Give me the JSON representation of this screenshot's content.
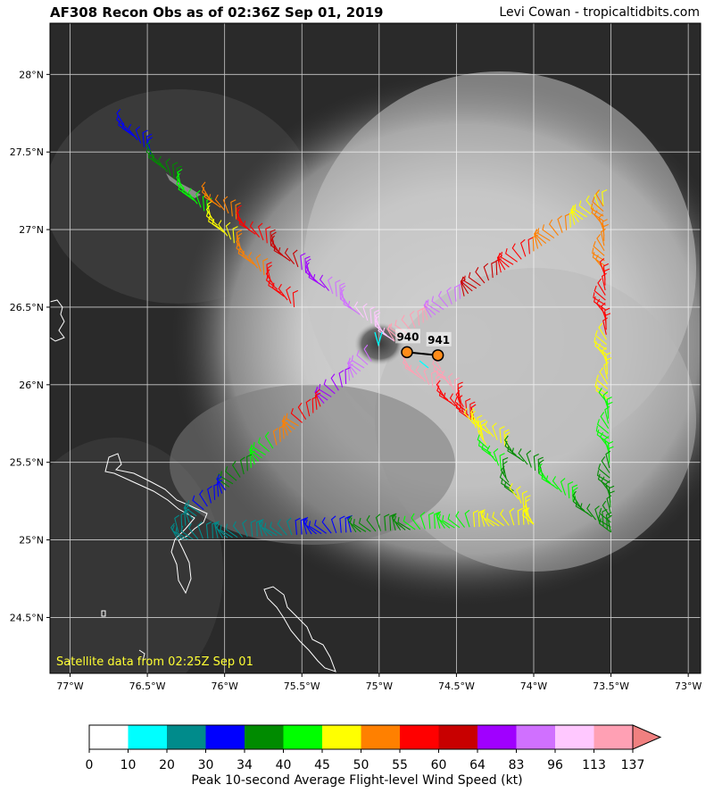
{
  "header": {
    "title": "AF308 Recon Obs as of 02:36Z Sep 01, 2019",
    "credit": "Levi Cowan - tropicaltidbits.com"
  },
  "map": {
    "lon_range": [
      -77.13,
      -72.92
    ],
    "lat_range": [
      24.14,
      28.33
    ],
    "lat_ticks": [
      "28°N",
      "27.5°N",
      "27°N",
      "26.5°N",
      "26°N",
      "25.5°N",
      "25°N",
      "24.5°N"
    ],
    "lat_tick_values": [
      28,
      27.5,
      27,
      26.5,
      26,
      25.5,
      25,
      24.5
    ],
    "lon_ticks": [
      "77°W",
      "76.5°W",
      "76°W",
      "75.5°W",
      "75°W",
      "74.5°W",
      "74°W",
      "73.5°W",
      "73°W"
    ],
    "lon_tick_values": [
      -77,
      -76.5,
      -76,
      -75.5,
      -75,
      -74.5,
      -74,
      -73.5,
      -73
    ],
    "satellite_note": "Satellite data from 02:25Z Sep 01",
    "pressure_obs": [
      {
        "label": "940",
        "lon": -74.82,
        "lat": 26.21
      },
      {
        "label": "941",
        "lon": -74.62,
        "lat": 26.19
      }
    ],
    "flight_legs": [
      {
        "from": [
          -76.65,
          27.67
        ],
        "to": [
          -75.55,
          26.5
        ],
        "colors": [
          "#0000ff",
          "#008b00",
          "#00ff00",
          "#ffff00",
          "#ff8000",
          "#ff0000"
        ]
      },
      {
        "from": [
          -76.1,
          27.2
        ],
        "to": [
          -74.9,
          26.28
        ],
        "colors": [
          "#ff8000",
          "#ff0000",
          "#c80000",
          "#a000ff",
          "#d070ff",
          "#ffc8ff"
        ]
      },
      {
        "from": [
          -74.9,
          26.28
        ],
        "to": [
          -73.55,
          27.15
        ],
        "colors": [
          "#ffa0b4",
          "#d070ff",
          "#c80000",
          "#ff0000",
          "#ff8000",
          "#ffff00"
        ]
      },
      {
        "from": [
          -73.55,
          27.15
        ],
        "to": [
          -73.5,
          25.05
        ],
        "colors": [
          "#ff8000",
          "#ff0000",
          "#ffff00",
          "#00ff00",
          "#008b00"
        ]
      },
      {
        "from": [
          -74.8,
          26.1
        ],
        "to": [
          -73.5,
          25.05
        ],
        "colors": [
          "#ffa0b4",
          "#ff0000",
          "#ffff00",
          "#008b00",
          "#00ff00",
          "#008b00"
        ]
      },
      {
        "from": [
          -74.6,
          26.1
        ],
        "to": [
          -74.0,
          25.1
        ],
        "colors": [
          "#ffa0b4",
          "#ff0000",
          "#ffff00",
          "#00ff00",
          "#008b00",
          "#ffff00"
        ]
      },
      {
        "from": [
          -75.05,
          26.15
        ],
        "to": [
          -76.3,
          25.05
        ],
        "colors": [
          "#d070ff",
          "#a000ff",
          "#ff0000",
          "#ff8000",
          "#00ff00",
          "#008b00",
          "#0000ff",
          "#008b8b"
        ]
      },
      {
        "from": [
          -76.3,
          25.0
        ],
        "to": [
          -74.0,
          25.1
        ],
        "colors": [
          "#008b8b",
          "#008b8b",
          "#0000ff",
          "#008b00",
          "#00ff00",
          "#ffff00"
        ]
      }
    ]
  },
  "colorbar": {
    "label": "Peak 10-second Average Flight-level Wind Speed (kt)",
    "ticks": [
      "0",
      "10",
      "20",
      "30",
      "34",
      "40",
      "45",
      "50",
      "55",
      "60",
      "64",
      "83",
      "96",
      "113",
      "137"
    ],
    "colors": [
      "#ffffff",
      "#00ffff",
      "#008b8b",
      "#0000ff",
      "#008b00",
      "#00ff00",
      "#ffff00",
      "#ff8000",
      "#ff0000",
      "#c80000",
      "#a000ff",
      "#d070ff",
      "#ffc8ff",
      "#ffa0b4"
    ],
    "extend_color": "#f08080"
  }
}
